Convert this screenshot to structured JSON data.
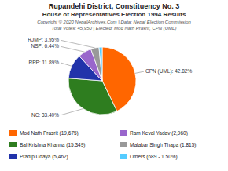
{
  "chart_data": {
    "type": "pie",
    "title": "Rupandehi District, Constituency No. 3",
    "subtitle": "House of Representatives Election 1994 Results",
    "annotations": [
      "Copyright © 2020 NepalArchives.Com | Data: Nepal Election Commission",
      "Total Votes: 45,950 | Elected: Mod Nath Prasrit, CPN (UML)"
    ],
    "categories": [
      "Mod Nath Prasrit (19,675)",
      "Bal Krishna Khanna (15,349)",
      "Pradip Udaya (5,462)",
      "Ram Keval Yadav (2,960)",
      "Malabar Singh Thapa (1,815)",
      "Others (689 - 1.50%)"
    ],
    "values": [
      42.82,
      33.4,
      11.89,
      6.44,
      3.95,
      1.5
    ],
    "value_labels": [
      "CPN (UML): 42.82%",
      "NC: 33.40%",
      "RPP: 11.89%",
      "NSP: 6.44%",
      "RJMP: 3.95%",
      null
    ],
    "colors": [
      "#FF6600",
      "#2E7D1F",
      "#2233AA",
      "#9966CC",
      "#999999",
      "#55CCFF"
    ],
    "legend": "bottom"
  }
}
